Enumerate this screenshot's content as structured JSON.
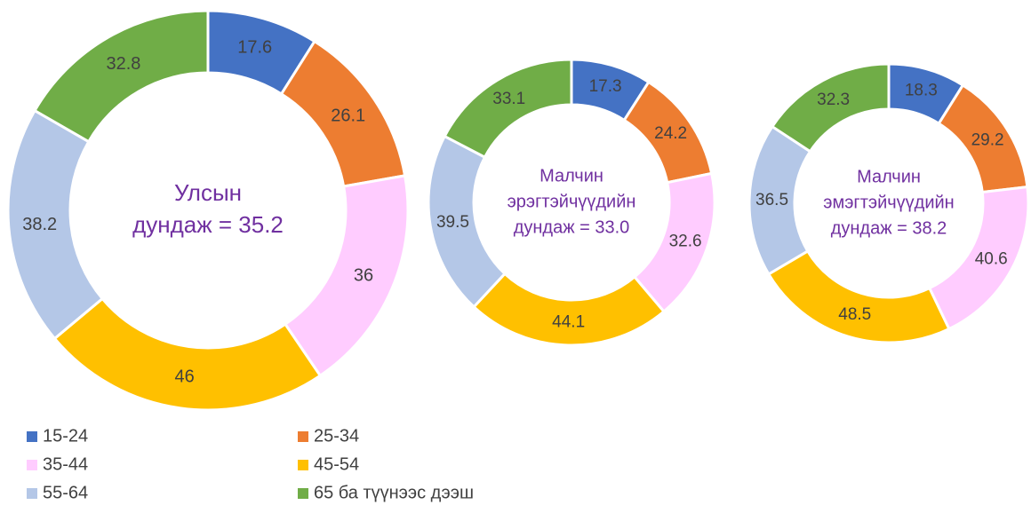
{
  "chart_data": [
    {
      "type": "donut",
      "center_text": [
        "Улсын",
        "дундаж = 35.2"
      ],
      "values": [
        17.6,
        26.1,
        36.0,
        46.0,
        38.2,
        32.8
      ]
    },
    {
      "type": "donut",
      "center_text": [
        "Малчин",
        "эрэгтэйчүүдийн",
        "дундаж = 33.0"
      ],
      "values": [
        17.3,
        24.2,
        32.6,
        44.1,
        39.5,
        33.1
      ]
    },
    {
      "type": "donut",
      "center_text": [
        "Малчин",
        "эмэгтэйчүүдийн",
        "дундаж = 38.2"
      ],
      "values": [
        18.3,
        29.2,
        40.6,
        48.5,
        36.5,
        32.3
      ]
    }
  ],
  "legend": {
    "labels": [
      "15-24",
      "25-34",
      "35-44",
      "45-54",
      "55-64",
      "65 ба түүнээс дээш"
    ],
    "colors": [
      "#4472c4",
      "#ed7d31",
      "#ffccff",
      "#ffc000",
      "#b4c7e7",
      "#70ad47"
    ]
  }
}
